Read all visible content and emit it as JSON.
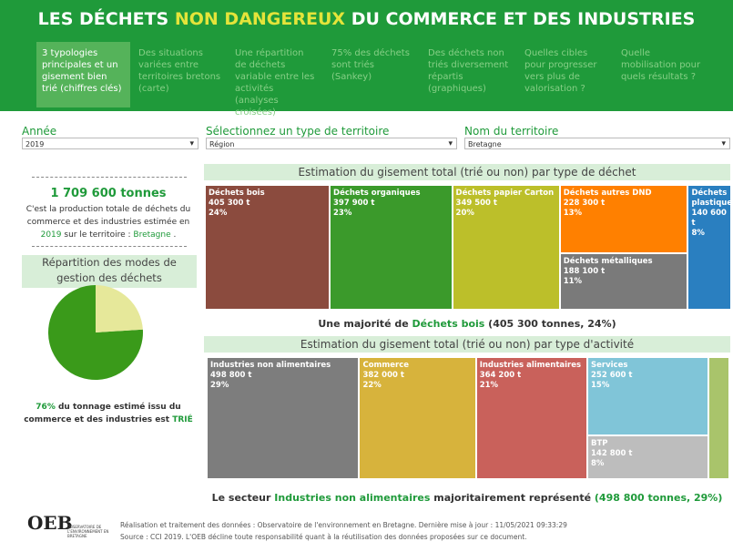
{
  "header": {
    "title_pre": "LES DÉCHETS",
    "title_hl": "NON DANGEREUX",
    "title_post": "DU COMMERCE ET DES INDUSTRIES"
  },
  "tabs": [
    "3 typologies principales et un gisement bien trié (chiffres clés)",
    "Des situations variées entre territoires bretons (carte)",
    "Une répartition de déchets variable entre les activités (analyses croisées)",
    "75% des déchets sont triés (Sankey)",
    "Des déchets non triés diversement répartis (graphiques)",
    "Quelles cibles pour progresser vers plus de valorisation ?",
    "Quelle mobilisation pour quels résultats ?"
  ],
  "filters": [
    {
      "label": "Année",
      "value": "2019"
    },
    {
      "label": "Sélectionnez un type de territoire",
      "value": "Région"
    },
    {
      "label": "Nom du territoire",
      "value": "Bretagne"
    }
  ],
  "summary": {
    "total": "1 709 600 tonnes",
    "text1": "C'est la production totale de déchets du commerce et des industries estimée en",
    "year": "2019",
    "text2": "sur le territoire :",
    "territory": "Bretagne",
    "text3": "."
  },
  "pie": {
    "title": "Répartition des modes de gestion des déchets",
    "values": [
      76,
      24
    ],
    "colors": [
      "#3a9a1a",
      "#e6e89a"
    ],
    "caption_pct": "76%",
    "caption_text": "du tonnage estimé issu du commerce et des industries est",
    "caption_hl": "TRIÉ"
  },
  "treemap_waste": {
    "title": "Estimation du gisement total (trié ou non) par type de déchet",
    "items": [
      {
        "name": "Déchets bois",
        "value": 405300,
        "value_label": "405 300 t",
        "share": "24%",
        "color": "#8b4b3e"
      },
      {
        "name": "Déchets organiques",
        "value": 397900,
        "value_label": "397 900 t",
        "share": "23%",
        "color": "#3b9a2b"
      },
      {
        "name": "Déchets papier Carton",
        "value": 349500,
        "value_label": "349 500 t",
        "share": "20%",
        "color": "#bcbf2a"
      },
      {
        "name": "Déchets autres DND",
        "value": 228300,
        "value_label": "228 300 t",
        "share": "13%",
        "color": "#ff8000"
      },
      {
        "name": "Déchets métalliques",
        "value": 188100,
        "value_label": "188 100 t",
        "share": "11%",
        "color": "#7a7a7a"
      },
      {
        "name": "Déchets plastiques",
        "value": 140600,
        "value_label": "140 600 t",
        "share": "8%",
        "color": "#2a7fc0"
      }
    ],
    "sentence_pre": "Une majorité de",
    "sentence_hl": "Déchets bois",
    "sentence_post": "(405 300 tonnes, 24%)"
  },
  "treemap_activity": {
    "title": "Estimation du gisement total (trié ou non) par type d'activité",
    "items": [
      {
        "name": "Industries non alimentaires",
        "value": 498800,
        "value_label": "498 800 t",
        "share": "29%",
        "color": "#7d7d7d"
      },
      {
        "name": "Commerce",
        "value": 382000,
        "value_label": "382 000 t",
        "share": "22%",
        "color": "#d7b33c"
      },
      {
        "name": "Industries alimentaires",
        "value": 364200,
        "value_label": "364 200 t",
        "share": "21%",
        "color": "#c9615b"
      },
      {
        "name": "Services",
        "value": 252600,
        "value_label": "252 600 t",
        "share": "15%",
        "color": "#80c5d8"
      },
      {
        "name": "BTP",
        "value": 142800,
        "value_label": "142 800 t",
        "share": "8%",
        "color": "#bdbdbd"
      },
      {
        "name": null,
        "value": 69200,
        "value_label": null,
        "share": null,
        "color": "#a9c46b"
      }
    ],
    "sentence_pre": "Le secteur",
    "sentence_hl": "Industries non alimentaires",
    "sentence_mid": "majoritairement représenté",
    "sentence_post": "(498 800 tonnes, 29%)"
  },
  "footer": {
    "logo": "OEB",
    "logo_sub": "OBSERVATOIRE DE L'ENVIRONNEMENT EN BRETAGNE",
    "line1": "Réalisation et traitement des données : Observatoire de l'environnement en Bretagne. Dernière mise à jour : 11/05/2021 09:33:29",
    "line2": "Source : CCI 2019. L'OEB décline toute responsabilité quant à la réutilisation des données proposées sur ce document."
  }
}
